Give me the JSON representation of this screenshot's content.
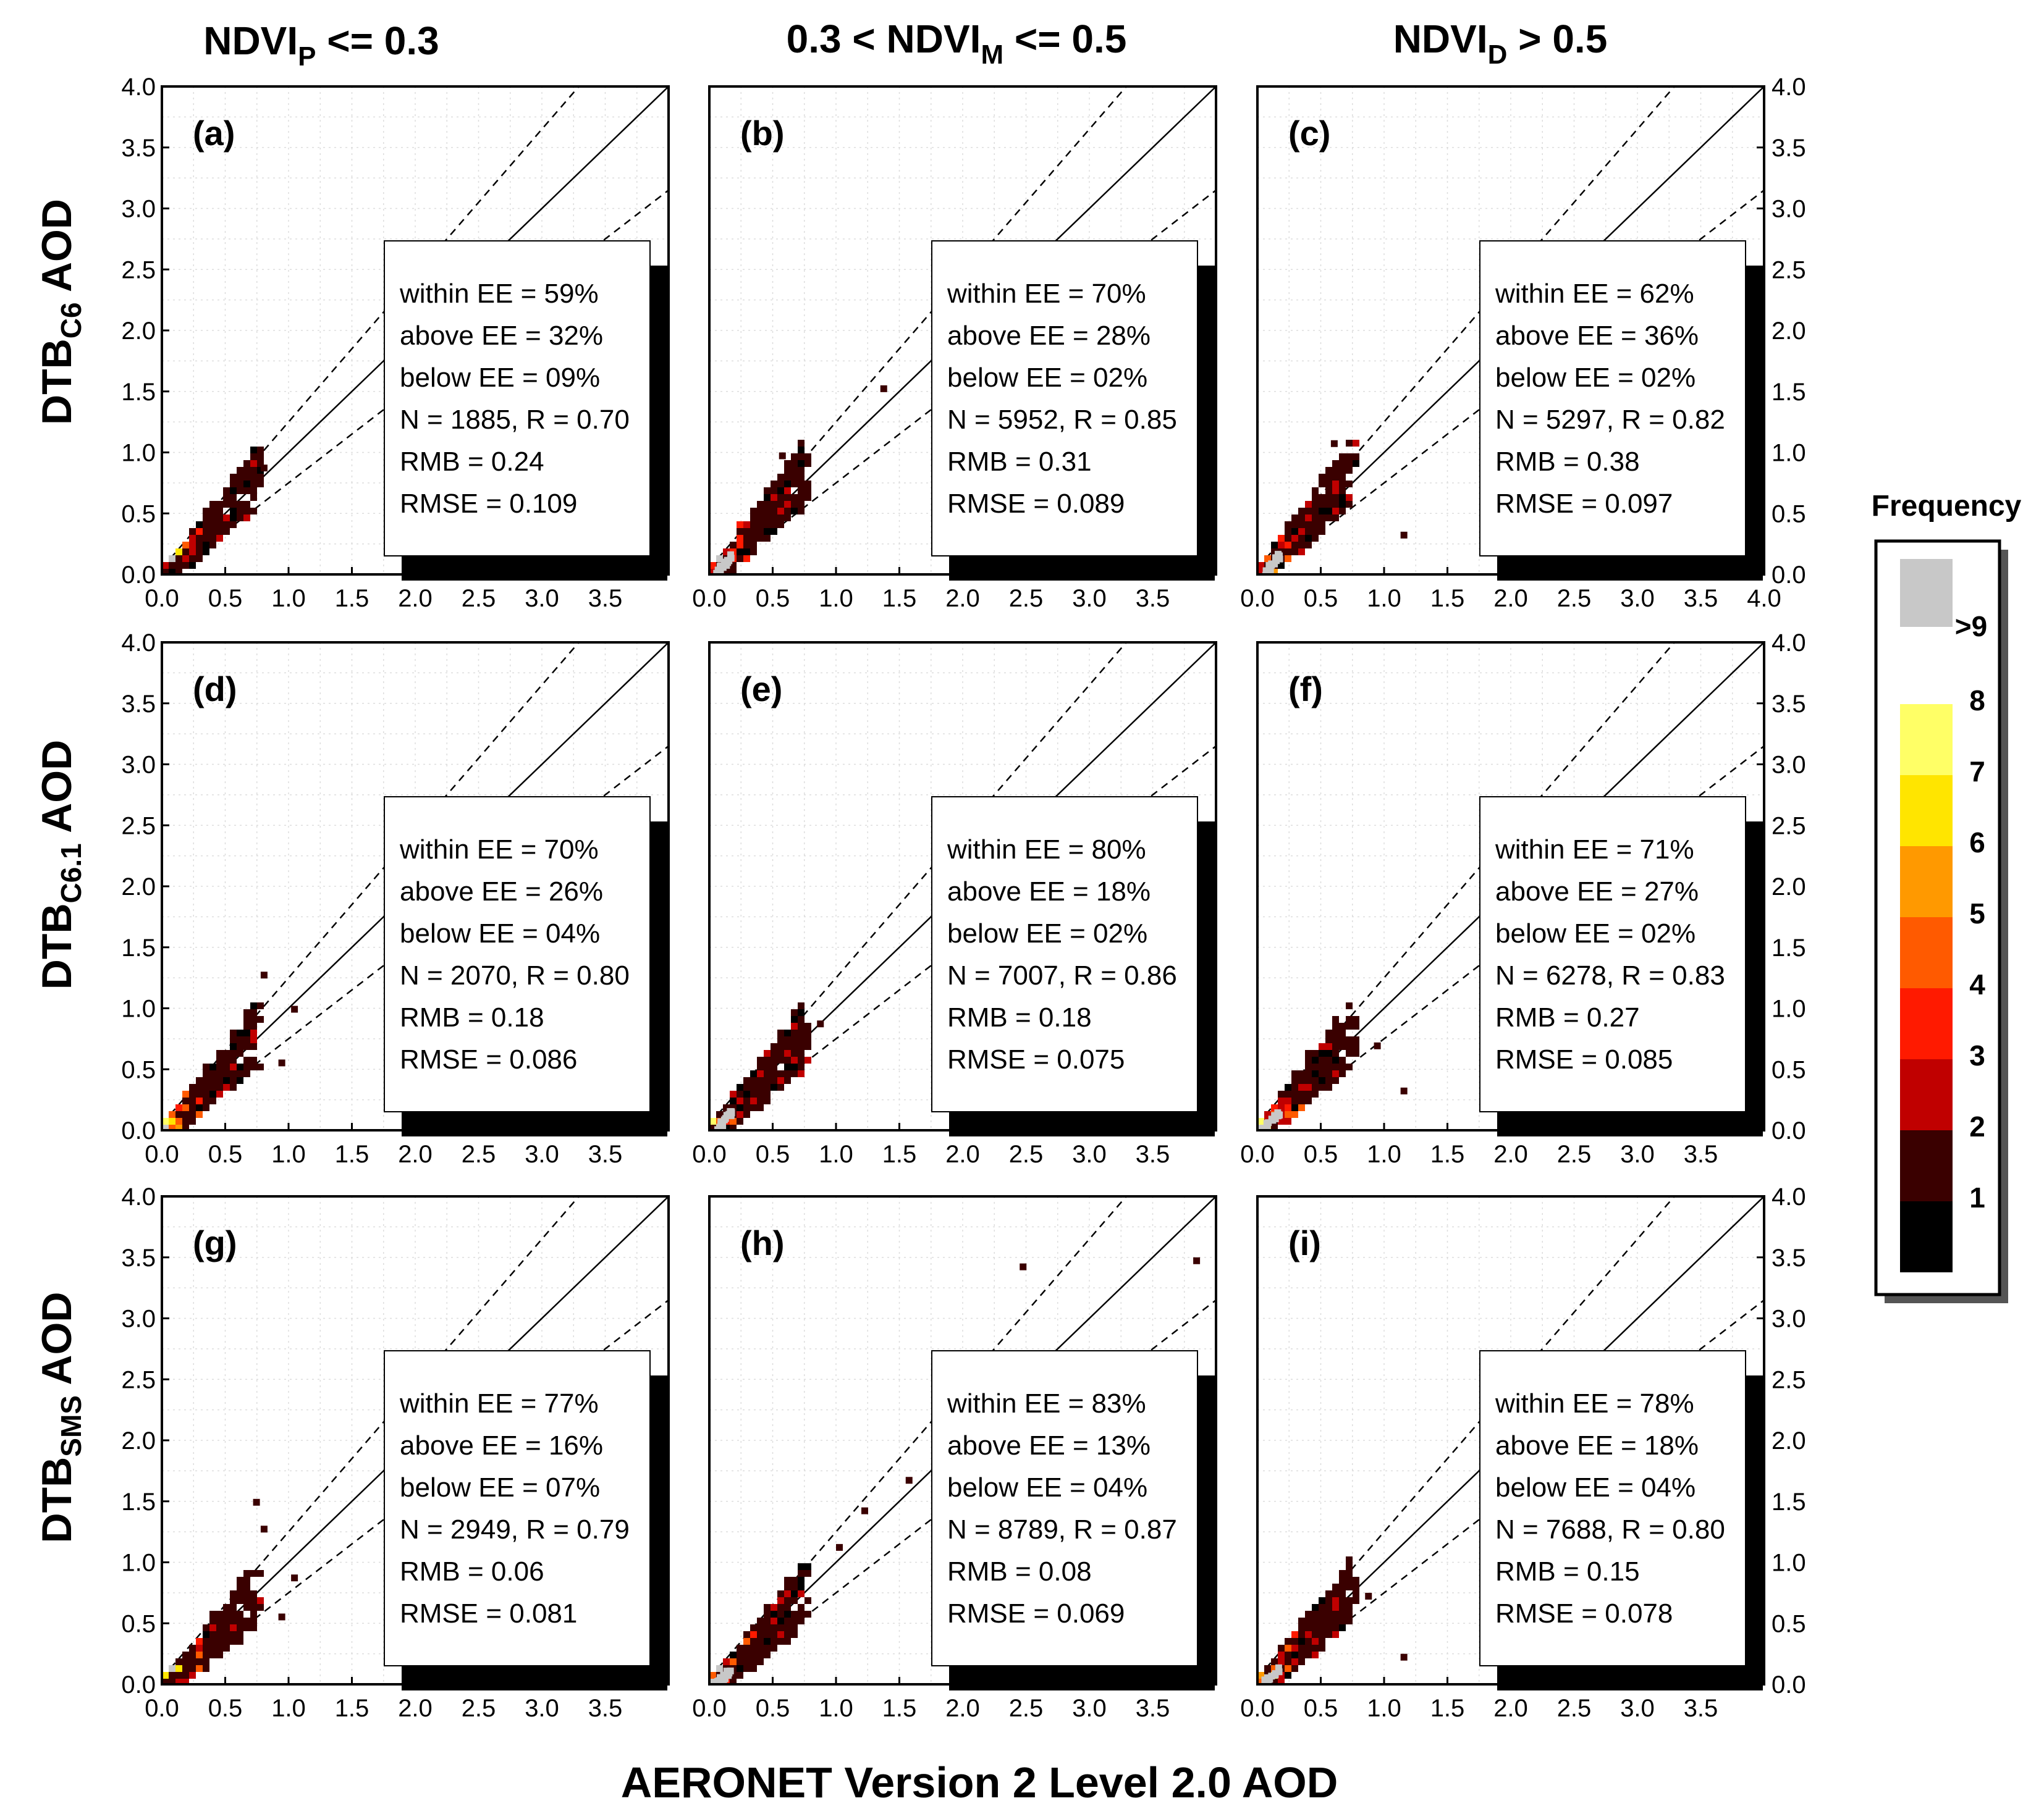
{
  "figure": {
    "xlabel": "AERONET Version 2 Level 2.0 AOD",
    "col_titles": [
      {
        "main": "NDVI",
        "sub": "P",
        "rest": " <= 0.3"
      },
      {
        "main": "0.3 < NDVI",
        "sub": "M",
        "rest": " <= 0.5"
      },
      {
        "main": "NDVI",
        "sub": "D",
        "rest": " > 0.5"
      }
    ],
    "row_labels": [
      {
        "main": "DTB",
        "sub": "C6",
        "rest": " AOD"
      },
      {
        "main": "DTB",
        "sub": "C6.1",
        "rest": " AOD"
      },
      {
        "main": "DTB",
        "sub": "SMS",
        "rest": " AOD"
      }
    ]
  },
  "colors": {
    "bins": [
      "#000000",
      "#3a0000",
      "#c00000",
      "#ff1a00",
      "#ff5a00",
      "#ff9900",
      "#ffe500",
      "#ffff66",
      "#c8c8c8"
    ]
  },
  "legend": {
    "title": "Frequency",
    "labels": [
      ">9",
      "8",
      "7",
      "6",
      "5",
      "4",
      "3",
      "2",
      "1"
    ]
  },
  "chart_data": [
    {
      "id": "a",
      "panel_label": "(a)",
      "type": "heatmap",
      "xlim": [
        0.0,
        4.0
      ],
      "ylim": [
        0.0,
        4.0
      ],
      "xticks": [
        "0.0",
        "0.5",
        "1.0",
        "1.5",
        "2.0",
        "2.5",
        "3.0",
        "3.5"
      ],
      "yticks": [
        "0.0",
        "0.5",
        "1.0",
        "1.5",
        "2.0",
        "2.5",
        "3.0",
        "3.5",
        "4.0"
      ],
      "y_axis_side": "left",
      "stats": [
        "within EE = 59%",
        "above EE = 32%",
        "below EE = 09%",
        "N = 1885, R = 0.70",
        "RMB = 0.24",
        "RMSE = 0.109"
      ],
      "n": 1885,
      "r": 0.7,
      "within_ee_pct": 59,
      "above_ee_pct": 32,
      "below_ee_pct": 9,
      "rmb": 0.24,
      "rmse": 0.109,
      "outliers": [
        [
          0.78,
          0.9
        ]
      ]
    },
    {
      "id": "b",
      "panel_label": "(b)",
      "type": "heatmap",
      "xlim": [
        0.0,
        4.0
      ],
      "ylim": [
        0.0,
        4.0
      ],
      "xticks": [
        "0.0",
        "0.5",
        "1.0",
        "1.5",
        "2.0",
        "2.5",
        "3.0",
        "3.5"
      ],
      "yticks": [],
      "y_axis_side": "none",
      "stats": [
        "within EE = 70%",
        "above EE = 28%",
        "below EE = 02%",
        "N = 5952, R = 0.85",
        "RMB = 0.31",
        "RMSE = 0.089"
      ],
      "n": 5952,
      "r": 0.85,
      "within_ee_pct": 70,
      "above_ee_pct": 28,
      "below_ee_pct": 2,
      "rmb": 0.31,
      "rmse": 0.089,
      "outliers": [
        [
          1.35,
          1.55
        ],
        [
          0.55,
          1.0
        ]
      ]
    },
    {
      "id": "c",
      "panel_label": "(c)",
      "type": "heatmap",
      "xlim": [
        0.0,
        4.0
      ],
      "ylim": [
        0.0,
        4.0
      ],
      "xticks": [
        "0.0",
        "0.5",
        "1.0",
        "1.5",
        "2.0",
        "2.5",
        "3.0",
        "3.5",
        "4.0"
      ],
      "yticks": [
        "0.0",
        "0.5",
        "1.0",
        "1.5",
        "2.0",
        "2.5",
        "3.0",
        "3.5",
        "4.0"
      ],
      "y_axis_side": "right",
      "stats": [
        "within EE = 62%",
        "above EE = 36%",
        "below EE = 02%",
        "N = 5297, R = 0.82",
        "RMB = 0.38",
        "RMSE = 0.097"
      ],
      "n": 5297,
      "r": 0.82,
      "within_ee_pct": 62,
      "above_ee_pct": 36,
      "below_ee_pct": 2,
      "rmb": 0.38,
      "rmse": 0.097,
      "outliers": [
        [
          0.58,
          1.1
        ],
        [
          1.13,
          0.35
        ]
      ]
    },
    {
      "id": "d",
      "panel_label": "(d)",
      "type": "heatmap",
      "xlim": [
        0.0,
        4.0
      ],
      "ylim": [
        0.0,
        4.0
      ],
      "xticks": [
        "0.0",
        "0.5",
        "1.0",
        "1.5",
        "2.0",
        "2.5",
        "3.0",
        "3.5"
      ],
      "yticks": [
        "0.0",
        "0.5",
        "1.0",
        "1.5",
        "2.0",
        "2.5",
        "3.0",
        "3.5",
        "4.0"
      ],
      "y_axis_side": "left",
      "stats": [
        "within EE = 70%",
        "above EE = 26%",
        "below EE = 04%",
        "N = 2070, R = 0.80",
        "RMB = 0.18",
        "RMSE = 0.086"
      ],
      "n": 2070,
      "r": 0.8,
      "within_ee_pct": 70,
      "above_ee_pct": 26,
      "below_ee_pct": 4,
      "rmb": 0.18,
      "rmse": 0.086,
      "outliers": [
        [
          0.78,
          1.3
        ],
        [
          1.02,
          1.02
        ],
        [
          0.92,
          0.58
        ]
      ]
    },
    {
      "id": "e",
      "panel_label": "(e)",
      "type": "heatmap",
      "xlim": [
        0.0,
        4.0
      ],
      "ylim": [
        0.0,
        4.0
      ],
      "xticks": [
        "0.0",
        "0.5",
        "1.0",
        "1.5",
        "2.0",
        "2.5",
        "3.0",
        "3.5"
      ],
      "yticks": [],
      "y_axis_side": "none",
      "stats": [
        "within EE = 80%",
        "above EE = 18%",
        "below EE = 02%",
        "N = 7007, R = 0.86",
        "RMB = 0.18",
        "RMSE = 0.075"
      ],
      "n": 7007,
      "r": 0.86,
      "within_ee_pct": 80,
      "above_ee_pct": 18,
      "below_ee_pct": 2,
      "rmb": 0.18,
      "rmse": 0.075,
      "outliers": [
        [
          0.85,
          0.9
        ],
        [
          0.7,
          0.8
        ]
      ]
    },
    {
      "id": "f",
      "panel_label": "(f)",
      "type": "heatmap",
      "xlim": [
        0.0,
        4.0
      ],
      "ylim": [
        0.0,
        4.0
      ],
      "xticks": [
        "0.0",
        "0.5",
        "1.0",
        "1.5",
        "2.0",
        "2.5",
        "3.0",
        "3.5"
      ],
      "yticks": [
        "0.0",
        "0.5",
        "1.0",
        "1.5",
        "2.0",
        "2.5",
        "3.0",
        "3.5",
        "4.0"
      ],
      "y_axis_side": "right",
      "stats": [
        "within EE = 71%",
        "above EE = 27%",
        "below EE = 02%",
        "N = 6278, R = 0.83",
        "RMB = 0.27",
        "RMSE = 0.085"
      ],
      "n": 6278,
      "r": 0.83,
      "within_ee_pct": 71,
      "above_ee_pct": 27,
      "below_ee_pct": 2,
      "rmb": 0.27,
      "rmse": 0.085,
      "outliers": [
        [
          1.13,
          0.35
        ],
        [
          0.92,
          0.72
        ]
      ]
    },
    {
      "id": "g",
      "panel_label": "(g)",
      "type": "heatmap",
      "xlim": [
        0.0,
        4.0
      ],
      "ylim": [
        0.0,
        4.0
      ],
      "xticks": [
        "0.0",
        "0.5",
        "1.0",
        "1.5",
        "2.0",
        "2.5",
        "3.0",
        "3.5"
      ],
      "yticks": [
        "0.0",
        "0.5",
        "1.0",
        "1.5",
        "2.0",
        "2.5",
        "3.0",
        "3.5",
        "4.0"
      ],
      "y_axis_side": "left",
      "stats": [
        "within EE = 77%",
        "above EE = 16%",
        "below EE = 07%",
        "N = 2949, R = 0.79",
        "RMB = 0.06",
        "RMSE = 0.081"
      ],
      "n": 2949,
      "r": 0.79,
      "within_ee_pct": 77,
      "above_ee_pct": 16,
      "below_ee_pct": 7,
      "rmb": 0.06,
      "rmse": 0.081,
      "outliers": [
        [
          0.72,
          1.52
        ],
        [
          0.78,
          1.3
        ],
        [
          1.02,
          0.9
        ],
        [
          0.92,
          0.58
        ]
      ]
    },
    {
      "id": "h",
      "panel_label": "(h)",
      "type": "heatmap",
      "xlim": [
        0.0,
        4.0
      ],
      "ylim": [
        0.0,
        4.0
      ],
      "xticks": [
        "0.0",
        "0.5",
        "1.0",
        "1.5",
        "2.0",
        "2.5",
        "3.0",
        "3.5"
      ],
      "yticks": [],
      "y_axis_side": "none",
      "stats": [
        "within EE = 83%",
        "above EE = 13%",
        "below EE = 04%",
        "N = 8789, R = 0.87",
        "RMB = 0.08",
        "RMSE = 0.069"
      ],
      "n": 8789,
      "r": 0.87,
      "within_ee_pct": 83,
      "above_ee_pct": 13,
      "below_ee_pct": 4,
      "rmb": 0.08,
      "rmse": 0.069,
      "outliers": [
        [
          2.45,
          3.45
        ],
        [
          3.82,
          3.5
        ],
        [
          1.55,
          1.7
        ],
        [
          1.2,
          1.45
        ],
        [
          1.0,
          1.15
        ]
      ]
    },
    {
      "id": "i",
      "panel_label": "(i)",
      "type": "heatmap",
      "xlim": [
        0.0,
        4.0
      ],
      "ylim": [
        0.0,
        4.0
      ],
      "xticks": [
        "0.0",
        "0.5",
        "1.0",
        "1.5",
        "2.0",
        "2.5",
        "3.0",
        "3.5"
      ],
      "yticks": [
        "0.0",
        "0.5",
        "1.0",
        "1.5",
        "2.0",
        "2.5",
        "3.0",
        "3.5",
        "4.0"
      ],
      "y_axis_side": "right",
      "stats": [
        "within EE = 78%",
        "above EE = 18%",
        "below EE = 04%",
        "N = 7688, R = 0.80",
        "RMB = 0.15",
        "RMSE = 0.078"
      ],
      "n": 7688,
      "r": 0.8,
      "within_ee_pct": 78,
      "above_ee_pct": 18,
      "below_ee_pct": 4,
      "rmb": 0.15,
      "rmse": 0.078,
      "outliers": [
        [
          1.13,
          0.25
        ],
        [
          0.85,
          0.75
        ]
      ]
    }
  ]
}
